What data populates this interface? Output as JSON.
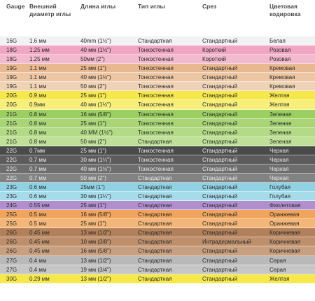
{
  "headers": {
    "gauge": "Gauge",
    "outer_diameter": "Внешний диаметр иглы",
    "length": "Длина иглы",
    "type": "Тип иглы",
    "bevel": "Срез",
    "color_code": "Цветовая кодировка"
  },
  "rows": [
    {
      "gauge": "16G",
      "diameter": "1.6 мм",
      "length": "40mm (1½\")",
      "type": "Стандартная",
      "bevel": "Стандартный",
      "color": "Белая",
      "bg": "#f2f2f2",
      "dark": false
    },
    {
      "gauge": "18G",
      "diameter": "1.25 мм",
      "length": "40 мм (1½\")",
      "type": "Тонкостенная",
      "bevel": "Короткий",
      "color": "Розовая",
      "bg": "#f0a6c2",
      "dark": false
    },
    {
      "gauge": "18G",
      "diameter": "1.25 мм",
      "length": "50мм (2\")",
      "type": "Тонкостенная",
      "bevel": "Короткий",
      "color": "Розовая",
      "bg": "#f3b9cf",
      "dark": false
    },
    {
      "gauge": "19G",
      "diameter": "1.1 мм",
      "length": "25 мм (1\")",
      "type": "Тонкостенная",
      "bevel": "Стандартный",
      "color": "Кремовая",
      "bg": "#e8b890",
      "dark": false
    },
    {
      "gauge": "19G",
      "diameter": "1.1 мм",
      "length": "40 мм (1½\")",
      "type": "Тонкостенная",
      "bevel": "Стандартный",
      "color": "Кремовая",
      "bg": "#edc6a3",
      "dark": false
    },
    {
      "gauge": "19G",
      "diameter": "1.1 мм",
      "length": "50 мм (2\")",
      "type": "Тонкостенная",
      "bevel": "Стандартный",
      "color": "Кремовая",
      "bg": "#f0d2b6",
      "dark": false
    },
    {
      "gauge": "20G",
      "diameter": "0.9 мм",
      "length": "25 мм (1\")",
      "type": "Тонкостенная",
      "bevel": "Стандартный",
      "color": "Желтая",
      "bg": "#f6e84a",
      "dark": false
    },
    {
      "gauge": "20G",
      "diameter": "0.9мм",
      "length": "40 мм (1½\")",
      "type": "Тонкостенная",
      "bevel": "Стандартный",
      "color": "Желтая",
      "bg": "#f8ee7a",
      "dark": false
    },
    {
      "gauge": "21G",
      "diameter": "0.8 мм",
      "length": "16 мм (5/8\")",
      "type": "Тонкостенная",
      "bevel": "Стандартный",
      "color": "Зеленая",
      "bg": "#9ccf62",
      "dark": false
    },
    {
      "gauge": "21G",
      "diameter": "0.8 мм",
      "length": "25 мм (1\")",
      "type": "Тонкостенная",
      "bevel": "Стандартный",
      "color": "Зеленая",
      "bg": "#a9d577",
      "dark": false
    },
    {
      "gauge": "21G",
      "diameter": "0.8 мм",
      "length": "40 MM (1½\")",
      "type": "Тонкостенная",
      "bevel": "Стандартный",
      "color": "Зеленая",
      "bg": "#b3da86",
      "dark": false
    },
    {
      "gauge": "21G",
      "diameter": "0.8 мм",
      "length": "50 мм (2\")",
      "type": "Стандартная",
      "bevel": "Стандартный",
      "color": "Зеленая",
      "bg": "#bfe098",
      "dark": false
    },
    {
      "gauge": "22G",
      "diameter": "0.7мм",
      "length": "25 мм (1\")",
      "type": "Тонкостенная",
      "bevel": "Стандартный",
      "color": "Черная",
      "bg": "#4a4a4a",
      "dark": true
    },
    {
      "gauge": "22G",
      "diameter": "0.7 мм",
      "length": "30 мм (1¼\")",
      "type": "Тонкостенная",
      "bevel": "Стандартный",
      "color": "Черная",
      "bg": "#5c5c5c",
      "dark": true
    },
    {
      "gauge": "22G",
      "diameter": "0.7 мм",
      "length": "40 мм (1½\")",
      "type": "Тонкостенная",
      "bevel": "Стандартный",
      "color": "Черная",
      "bg": "#6e6e6e",
      "dark": true
    },
    {
      "gauge": "22G",
      "diameter": "0.7 мм",
      "length": "50 мм (2\")",
      "type": "Стандартная",
      "bevel": "Стандартный",
      "color": "Черная",
      "bg": "#828282",
      "dark": true
    },
    {
      "gauge": "23G",
      "diameter": "0.6 мм",
      "length": "25мм (1\")",
      "type": "Стандартная",
      "bevel": "Стандартный",
      "color": "Голубая",
      "bg": "#8fd2e4",
      "dark": false
    },
    {
      "gauge": "23G",
      "diameter": "0.6 мм",
      "length": "30 мм (1¼\")",
      "type": "Стандартная",
      "bevel": "Стандартный",
      "color": "Голубая",
      "bg": "#a6dbe9",
      "dark": false
    },
    {
      "gauge": "24G",
      "diameter": "0.55 мм",
      "length": "25 мм (1\")",
      "type": "Стандартная",
      "bevel": "Стандартный",
      "color": "Фиолетовая",
      "bg": "#b18fcf",
      "dark": false
    },
    {
      "gauge": "25G",
      "diameter": "0.5 мм",
      "length": "16 мм (5/8\")",
      "type": "Стандартная",
      "bevel": "Стандартный",
      "color": "Оранжевая",
      "bg": "#f0a45c",
      "dark": false
    },
    {
      "gauge": "25G",
      "diameter": "0.5 мм",
      "length": "25 мм (1\")",
      "type": "Стандартная",
      "bevel": "Стандартный",
      "color": "Оранжевая",
      "bg": "#f3b678",
      "dark": false
    },
    {
      "gauge": "26G",
      "diameter": "0.45 мм",
      "length": "13 мм (1/2\")",
      "type": "Стандартная",
      "bevel": "Стандартный",
      "color": "Коричневая",
      "bg": "#b2805a",
      "dark": false
    },
    {
      "gauge": "26G",
      "diameter": "0.45 мм",
      "length": "10 мм (3/8\")",
      "type": "Стандартная",
      "bevel": "Интрадермальный",
      "color": "Коричневая",
      "bg": "#bd8f6b",
      "dark": false
    },
    {
      "gauge": "26G",
      "diameter": "0.45 мм",
      "length": "16 мм (5/8\")",
      "type": "Стандартная",
      "bevel": "Стандартный",
      "color": "Коричневая",
      "bg": "#c8a07f",
      "dark": false
    },
    {
      "gauge": "27G",
      "diameter": "0.4 мм",
      "length": "13 мм (1/2\")",
      "type": "Стандартная",
      "bevel": "Стандартный",
      "color": "Серая",
      "bg": "#b9b9b9",
      "dark": false
    },
    {
      "gauge": "27G",
      "diameter": "0.4 мм",
      "length": "19 мм (3/4\")",
      "type": "Стандартная",
      "bevel": "Стандартный",
      "color": "Серая",
      "bg": "#c6c6c6",
      "dark": false
    },
    {
      "gauge": "30G",
      "diameter": "0.29 мм",
      "length": "13 мм (1/2\")",
      "type": "Стандартная",
      "bevel": "Стандартный",
      "color": "Желтая",
      "bg": "#f6e84a",
      "dark": false
    }
  ]
}
